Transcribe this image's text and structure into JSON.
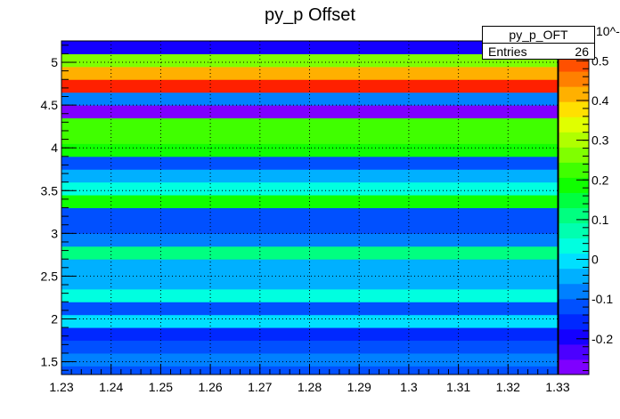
{
  "title": "py_p Offset",
  "stats": {
    "name": "py_p_OFT",
    "entries_label": "Entries",
    "entries_value": "26"
  },
  "colors": {
    "frame": "#000000",
    "grid": "#000000"
  },
  "chart_data": {
    "type": "heatmap",
    "title": "py_p Offset",
    "x_range": [
      1.23,
      1.33
    ],
    "y_range": [
      1.35,
      5.25
    ],
    "x_ticks": [
      "1.23",
      "1.24",
      "1.25",
      "1.26",
      "1.27",
      "1.28",
      "1.29",
      "1.3",
      "1.31",
      "1.32",
      "1.33"
    ],
    "y_ticks": [
      "1.5",
      "2",
      "2.5",
      "3",
      "3.5",
      "4",
      "4.5",
      "5"
    ],
    "z_range": [
      -0.29,
      0.55
    ],
    "z_exponent_label": "10^-3",
    "z_ticks": [
      "-0.2",
      "-0.1",
      "0",
      "0.1",
      "0.2",
      "0.3",
      "0.4",
      "0.5"
    ],
    "palette": [
      "#7f00ff",
      "#4b00ff",
      "#1400ff",
      "#0028ff",
      "#0050ff",
      "#0080ff",
      "#00b0ff",
      "#00e0ff",
      "#00ffe0",
      "#00ffb0",
      "#00ff80",
      "#00ff40",
      "#10ff00",
      "#40ff00",
      "#80ff00",
      "#b0ff00",
      "#e0ff00",
      "#ffe000",
      "#ffb000",
      "#ff8000",
      "#ff5000",
      "#ff2000"
    ],
    "bands": [
      {
        "y0": 1.35,
        "y1": 1.45,
        "z": -0.13
      },
      {
        "y0": 1.45,
        "y1": 1.6,
        "z": -0.08
      },
      {
        "y0": 1.6,
        "y1": 1.75,
        "z": -0.1
      },
      {
        "y0": 1.75,
        "y1": 1.9,
        "z": -0.14
      },
      {
        "y0": 1.9,
        "y1": 2.05,
        "z": 0.0
      },
      {
        "y0": 2.05,
        "y1": 2.2,
        "z": -0.12
      },
      {
        "y0": 2.2,
        "y1": 2.35,
        "z": 0.04
      },
      {
        "y0": 2.35,
        "y1": 2.55,
        "z": -0.04
      },
      {
        "y0": 2.55,
        "y1": 2.7,
        "z": -0.05
      },
      {
        "y0": 2.7,
        "y1": 2.85,
        "z": 0.1
      },
      {
        "y0": 2.85,
        "y1": 3.0,
        "z": -0.08
      },
      {
        "y0": 3.0,
        "y1": 3.15,
        "z": -0.13
      },
      {
        "y0": 3.15,
        "y1": 3.3,
        "z": -0.1
      },
      {
        "y0": 3.3,
        "y1": 3.45,
        "z": 0.17
      },
      {
        "y0": 3.45,
        "y1": 3.6,
        "z": 0.03
      },
      {
        "y0": 3.6,
        "y1": 3.75,
        "z": -0.05
      },
      {
        "y0": 3.75,
        "y1": 3.9,
        "z": -0.1
      },
      {
        "y0": 3.9,
        "y1": 4.05,
        "z": 0.2
      },
      {
        "y0": 4.05,
        "y1": 4.2,
        "z": 0.23
      },
      {
        "y0": 4.2,
        "y1": 4.35,
        "z": 0.21
      },
      {
        "y0": 4.35,
        "y1": 4.5,
        "z": -0.27
      },
      {
        "y0": 4.5,
        "y1": 4.65,
        "z": -0.07
      },
      {
        "y0": 4.65,
        "y1": 4.8,
        "z": 0.53
      },
      {
        "y0": 4.8,
        "y1": 4.95,
        "z": 0.4
      },
      {
        "y0": 4.95,
        "y1": 5.1,
        "z": 0.26
      },
      {
        "y0": 5.1,
        "y1": 5.25,
        "z": -0.19
      }
    ]
  }
}
